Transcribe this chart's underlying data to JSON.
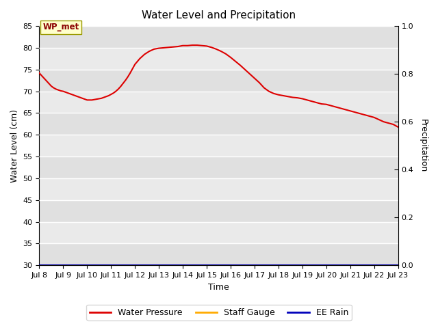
{
  "title": "Water Level and Precipitation",
  "xlabel": "Time",
  "ylabel_left": "Water Level (cm)",
  "ylabel_right": "Precipitation",
  "annotation_text": "WP_met",
  "ylim_left": [
    30,
    85
  ],
  "ylim_right": [
    0.0,
    1.0
  ],
  "yticks_left": [
    30,
    35,
    40,
    45,
    50,
    55,
    60,
    65,
    70,
    75,
    80,
    85
  ],
  "yticks_right": [
    0.0,
    0.2,
    0.4,
    0.6,
    0.8,
    1.0
  ],
  "xlim": [
    8,
    23
  ],
  "xtick_positions": [
    8,
    9,
    10,
    11,
    12,
    13,
    14,
    15,
    16,
    17,
    18,
    19,
    20,
    21,
    22,
    23
  ],
  "xtick_labels": [
    "Jul 8",
    "Jul 9",
    "Jul 10",
    "Jul 11",
    "Jul 12",
    "Jul 13",
    "Jul 14",
    "Jul 15",
    "Jul 16",
    "Jul 17",
    "Jul 18",
    "Jul 19",
    "Jul 20",
    "Jul 21",
    "Jul 22",
    "Jul 23"
  ],
  "water_pressure_color": "#dd0000",
  "staff_gauge_color": "#ffaa00",
  "ee_rain_color": "#0000bb",
  "plot_bg_color": "#ebebeb",
  "fig_bg_color": "#ffffff",
  "grid_color": "#ffffff",
  "line_width": 1.5,
  "wp_x": [
    8.0,
    8.1,
    8.2,
    8.3,
    8.4,
    8.5,
    8.6,
    8.7,
    8.8,
    8.9,
    9.0,
    9.1,
    9.2,
    9.3,
    9.4,
    9.5,
    9.6,
    9.7,
    9.8,
    9.9,
    10.0,
    10.1,
    10.2,
    10.3,
    10.4,
    10.5,
    10.6,
    10.7,
    10.8,
    10.9,
    11.0,
    11.1,
    11.2,
    11.3,
    11.4,
    11.5,
    11.6,
    11.7,
    11.8,
    11.9,
    12.0,
    12.2,
    12.4,
    12.6,
    12.8,
    13.0,
    13.2,
    13.4,
    13.6,
    13.8,
    14.0,
    14.2,
    14.4,
    14.6,
    14.8,
    15.0,
    15.2,
    15.4,
    15.6,
    15.8,
    16.0,
    16.2,
    16.4,
    16.6,
    16.8,
    17.0,
    17.2,
    17.4,
    17.6,
    17.8,
    18.0,
    18.2,
    18.4,
    18.6,
    18.8,
    19.0,
    19.2,
    19.4,
    19.6,
    19.8,
    20.0,
    20.2,
    20.4,
    20.6,
    20.8,
    21.0,
    21.2,
    21.4,
    21.6,
    21.8,
    22.0,
    22.2,
    22.4,
    22.6,
    22.8,
    23.0
  ],
  "wp_y": [
    74.2,
    73.6,
    73.0,
    72.4,
    71.8,
    71.2,
    70.8,
    70.5,
    70.3,
    70.1,
    70.0,
    69.8,
    69.6,
    69.4,
    69.2,
    69.0,
    68.8,
    68.6,
    68.4,
    68.2,
    68.0,
    68.0,
    68.0,
    68.1,
    68.2,
    68.3,
    68.4,
    68.6,
    68.8,
    69.0,
    69.3,
    69.6,
    70.0,
    70.5,
    71.1,
    71.8,
    72.5,
    73.3,
    74.2,
    75.2,
    76.2,
    77.5,
    78.5,
    79.2,
    79.7,
    79.9,
    80.0,
    80.1,
    80.2,
    80.3,
    80.5,
    80.5,
    80.6,
    80.6,
    80.5,
    80.4,
    80.1,
    79.7,
    79.2,
    78.6,
    77.8,
    76.9,
    76.0,
    75.0,
    74.0,
    73.0,
    72.0,
    70.8,
    70.0,
    69.5,
    69.2,
    69.0,
    68.8,
    68.6,
    68.5,
    68.3,
    68.0,
    67.7,
    67.4,
    67.1,
    67.0,
    66.7,
    66.4,
    66.1,
    65.8,
    65.5,
    65.2,
    64.9,
    64.6,
    64.3,
    64.0,
    63.5,
    63.0,
    62.7,
    62.4,
    61.8
  ],
  "legend_labels": [
    "Water Pressure",
    "Staff Gauge",
    "EE Rain"
  ]
}
